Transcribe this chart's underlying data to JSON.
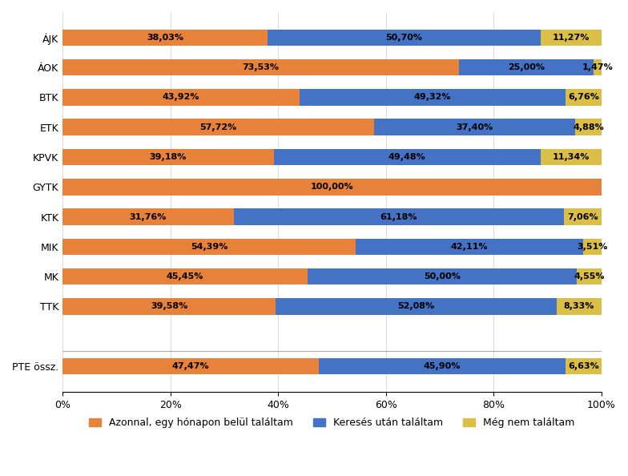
{
  "categories": [
    "ÁJK",
    "ÁOK",
    "BTK",
    "ETK",
    "KPVK",
    "GYTK",
    "KTK",
    "MIK",
    "MK",
    "TTK",
    "",
    "PTE össz."
  ],
  "series": [
    {
      "name": "Azonnal, egy hónapon belül találtam",
      "color": "#E8813A",
      "values": [
        38.03,
        73.53,
        43.92,
        57.72,
        39.18,
        100.0,
        31.76,
        54.39,
        45.45,
        39.58,
        0,
        47.47
      ]
    },
    {
      "name": "Keresés után találtam",
      "color": "#4472C4",
      "values": [
        50.7,
        25.0,
        49.32,
        37.4,
        49.48,
        0.0,
        61.18,
        42.11,
        50.0,
        52.08,
        0,
        45.9
      ]
    },
    {
      "name": "Még nem találtam",
      "color": "#DBBE45",
      "values": [
        11.27,
        1.47,
        6.76,
        4.88,
        11.34,
        0.0,
        7.06,
        3.51,
        4.55,
        8.33,
        0,
        6.63
      ]
    }
  ],
  "labels": [
    [
      "38,03%",
      "73,53%",
      "43,92%",
      "57,72%",
      "39,18%",
      "100,00%",
      "31,76%",
      "54,39%",
      "45,45%",
      "39,58%",
      "",
      "47,47%"
    ],
    [
      "50,70%",
      "25,00%",
      "49,32%",
      "37,40%",
      "49,48%",
      "",
      "61,18%",
      "42,11%",
      "50,00%",
      "52,08%",
      "",
      "45,90%"
    ],
    [
      "11,27%",
      "1,47%",
      "6,76%",
      "4,88%",
      "11,34%",
      "",
      "7,06%",
      "3,51%",
      "4,55%",
      "8,33%",
      "",
      "6,63%"
    ]
  ],
  "xlim": [
    0,
    100
  ],
  "background_color": "#FFFFFF",
  "bar_height": 0.55,
  "text_fontsize": 8.0,
  "legend_fontsize": 9,
  "tick_fontsize": 9,
  "separator_index": 10
}
